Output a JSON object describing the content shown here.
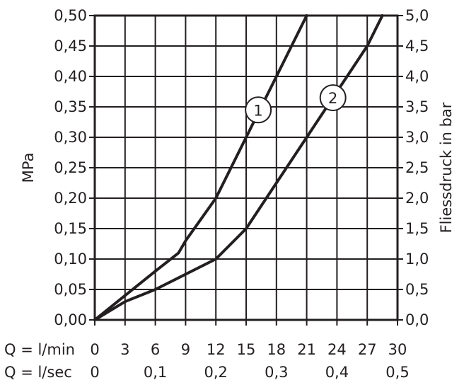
{
  "chart_data": {
    "type": "line",
    "ylabel_left": "MPa",
    "ylabel_right": "Fliessdruck in bar",
    "x_rows": [
      {
        "prefix": "Q = l/min",
        "ticks": [
          "0",
          "3",
          "6",
          "9",
          "12",
          "15",
          "18",
          "21",
          "24",
          "27",
          "30"
        ]
      },
      {
        "prefix": "Q = l/sec",
        "ticks": [
          "0",
          "0,1",
          "0,2",
          "0,3",
          "0,4",
          "0,5"
        ]
      }
    ],
    "xlim": [
      0,
      30
    ],
    "ylim": [
      0,
      0.5
    ],
    "ylim_right": [
      0,
      5.0
    ],
    "y_ticks_left": [
      "0,00",
      "0,05",
      "0,10",
      "0,15",
      "0,20",
      "0,25",
      "0,30",
      "0,35",
      "0,40",
      "0,45",
      "0,50"
    ],
    "y_ticks_right": [
      "0,0",
      "0,5",
      "1,0",
      "1,5",
      "2,0",
      "2,5",
      "3,0",
      "3,5",
      "4,0",
      "4,5",
      "5,0"
    ],
    "grid": true,
    "series": [
      {
        "name": "1",
        "x": [
          0,
          3,
          6,
          8.3,
          9,
          12,
          15,
          18,
          21
        ],
        "y": [
          0,
          0.04,
          0.08,
          0.11,
          0.13,
          0.2,
          0.3,
          0.4,
          0.5
        ]
      },
      {
        "name": "2",
        "x": [
          0,
          3,
          6,
          9,
          12,
          15,
          18,
          21,
          24,
          27,
          28.5
        ],
        "y": [
          0,
          0.03,
          0.05,
          0.075,
          0.1,
          0.15,
          0.225,
          0.3,
          0.375,
          0.45,
          0.5
        ]
      }
    ]
  }
}
